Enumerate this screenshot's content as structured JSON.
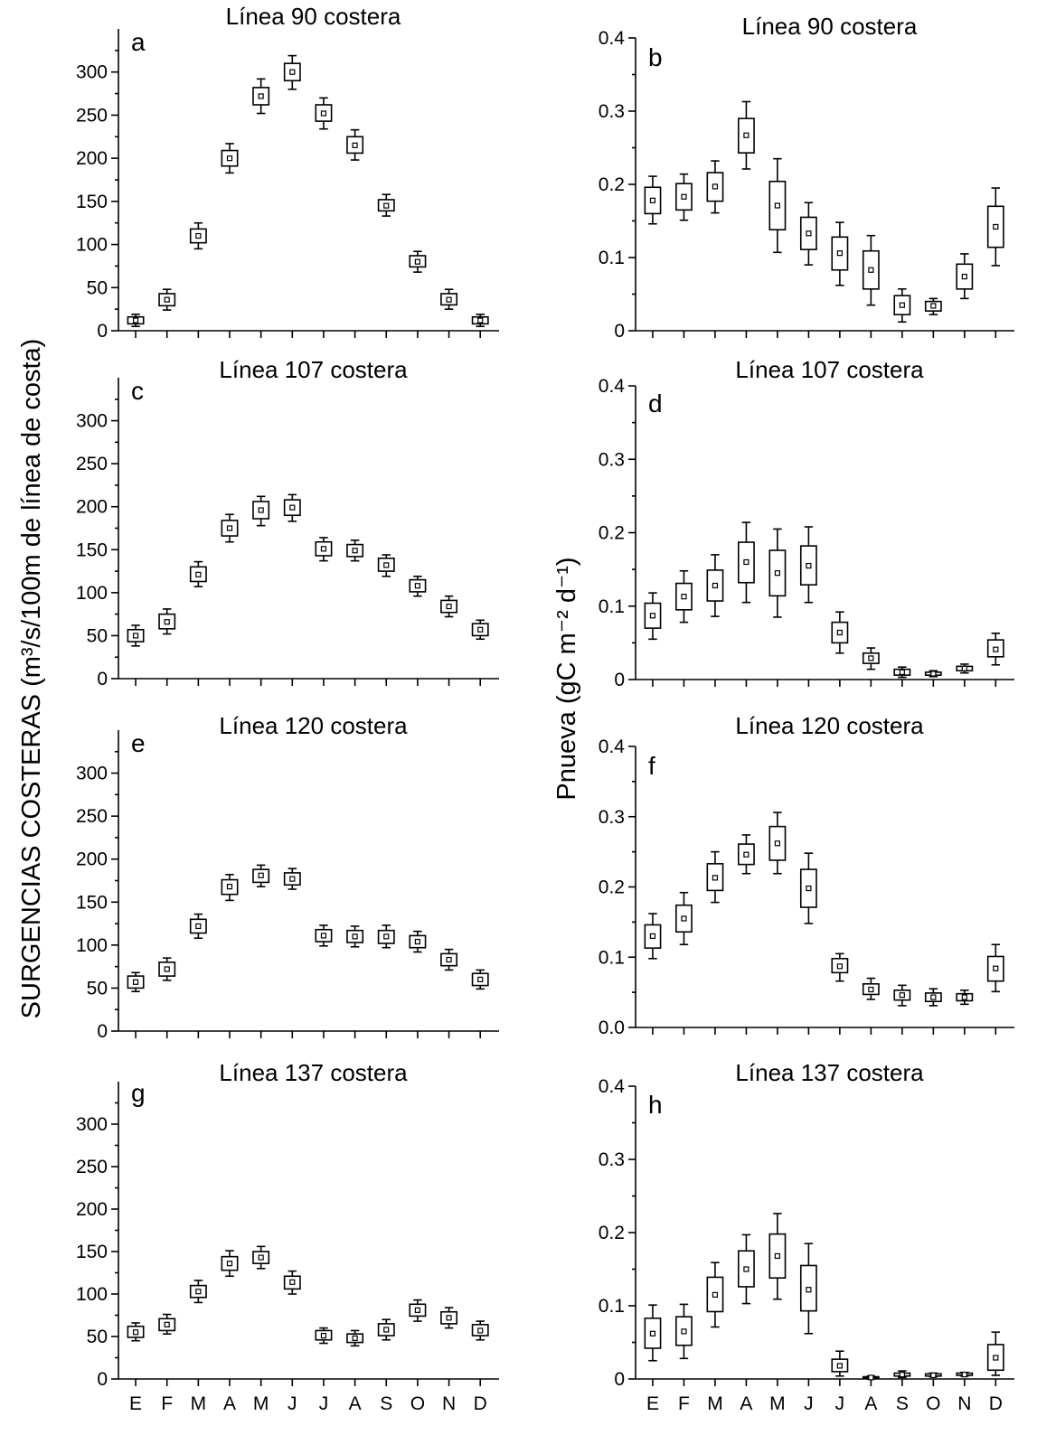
{
  "y_label_left": "SURGENCIAS COSTERAS (m³/s/100m de línea de costa)",
  "y_label_right": "Pnueva (gC m⁻² d⁻¹)",
  "months": [
    "E",
    "F",
    "M",
    "A",
    "M",
    "J",
    "J",
    "A",
    "S",
    "O",
    "N",
    "D"
  ],
  "chart_data": [
    {
      "type": "box",
      "label": "a",
      "title": "Línea 90 costera",
      "ylim": [
        0,
        350
      ],
      "yticks": [
        0,
        50,
        100,
        150,
        200,
        250,
        300
      ],
      "categories": [
        "E",
        "F",
        "M",
        "A",
        "M",
        "J",
        "J",
        "A",
        "S",
        "O",
        "N",
        "D"
      ],
      "mean": [
        12,
        36,
        110,
        200,
        272,
        300,
        252,
        215,
        145,
        80,
        36,
        12
      ],
      "q1": [
        8,
        29,
        102,
        191,
        262,
        290,
        243,
        206,
        139,
        74,
        30,
        8
      ],
      "q3": [
        16,
        43,
        118,
        209,
        282,
        310,
        262,
        225,
        152,
        87,
        43,
        16
      ],
      "whisker_low": [
        5,
        24,
        95,
        183,
        252,
        280,
        234,
        198,
        133,
        68,
        25,
        5
      ],
      "whisker_high": [
        19,
        48,
        125,
        217,
        292,
        319,
        270,
        233,
        158,
        92,
        48,
        19
      ],
      "tick_labels_x": false
    },
    {
      "type": "box",
      "label": "b",
      "title": "Línea 90 costera",
      "ylim": [
        0,
        0.4
      ],
      "yticks": [
        0.0,
        0.1,
        0.2,
        0.3,
        0.4
      ],
      "ytick_labels": [
        "0",
        "0.1",
        "0.2",
        "0.3",
        "0.4"
      ],
      "categories": [
        "E",
        "F",
        "M",
        "A",
        "M",
        "J",
        "J",
        "A",
        "S",
        "O",
        "N",
        "D"
      ],
      "mean": [
        0.178,
        0.183,
        0.197,
        0.267,
        0.171,
        0.133,
        0.106,
        0.083,
        0.035,
        0.034,
        0.074,
        0.142
      ],
      "q1": [
        0.16,
        0.165,
        0.177,
        0.243,
        0.138,
        0.111,
        0.083,
        0.057,
        0.022,
        0.027,
        0.057,
        0.114
      ],
      "q3": [
        0.196,
        0.201,
        0.216,
        0.29,
        0.204,
        0.155,
        0.128,
        0.109,
        0.048,
        0.04,
        0.091,
        0.17
      ],
      "whisker_low": [
        0.146,
        0.151,
        0.161,
        0.221,
        0.107,
        0.09,
        0.062,
        0.035,
        0.012,
        0.022,
        0.044,
        0.089
      ],
      "whisker_high": [
        0.211,
        0.214,
        0.232,
        0.313,
        0.235,
        0.175,
        0.148,
        0.13,
        0.057,
        0.044,
        0.105,
        0.195
      ],
      "tick_labels_x": false
    },
    {
      "type": "box",
      "label": "c",
      "title": "Línea 107 costera",
      "ylim": [
        0,
        350
      ],
      "yticks": [
        0,
        50,
        100,
        150,
        200,
        250,
        300
      ],
      "categories": [
        "E",
        "F",
        "M",
        "A",
        "M",
        "J",
        "J",
        "A",
        "S",
        "O",
        "N",
        "D"
      ],
      "mean": [
        50,
        66,
        121,
        175,
        196,
        199,
        151,
        149,
        132,
        108,
        84,
        57
      ],
      "q1": [
        43,
        58,
        113,
        166,
        186,
        190,
        143,
        142,
        125,
        101,
        77,
        50
      ],
      "q3": [
        57,
        75,
        130,
        184,
        206,
        208,
        159,
        156,
        140,
        115,
        91,
        64
      ],
      "whisker_low": [
        38,
        52,
        107,
        159,
        178,
        183,
        137,
        137,
        119,
        96,
        72,
        46
      ],
      "whisker_high": [
        62,
        81,
        136,
        191,
        212,
        214,
        164,
        161,
        144,
        119,
        96,
        68
      ],
      "tick_labels_x": false
    },
    {
      "type": "box",
      "label": "d",
      "title": "Línea 107 costera",
      "ylim": [
        0,
        0.4
      ],
      "yticks": [
        0.0,
        0.1,
        0.2,
        0.3,
        0.4
      ],
      "ytick_labels": [
        "0",
        "0.1",
        "0.2",
        "0.3",
        "0.4"
      ],
      "categories": [
        "E",
        "F",
        "M",
        "A",
        "M",
        "J",
        "J",
        "A",
        "S",
        "O",
        "N",
        "D"
      ],
      "mean": [
        0.087,
        0.113,
        0.128,
        0.16,
        0.145,
        0.155,
        0.064,
        0.029,
        0.01,
        0.008,
        0.015,
        0.041
      ],
      "q1": [
        0.07,
        0.095,
        0.107,
        0.132,
        0.114,
        0.129,
        0.05,
        0.022,
        0.006,
        0.006,
        0.012,
        0.031
      ],
      "q3": [
        0.104,
        0.131,
        0.149,
        0.187,
        0.176,
        0.182,
        0.078,
        0.036,
        0.014,
        0.01,
        0.018,
        0.054
      ],
      "whisker_low": [
        0.055,
        0.078,
        0.086,
        0.105,
        0.085,
        0.105,
        0.036,
        0.014,
        0.003,
        0.004,
        0.009,
        0.02
      ],
      "whisker_high": [
        0.118,
        0.148,
        0.17,
        0.214,
        0.205,
        0.208,
        0.092,
        0.043,
        0.017,
        0.012,
        0.021,
        0.063
      ],
      "tick_labels_x": false
    },
    {
      "type": "box",
      "label": "e",
      "title": "Línea 120 costera",
      "ylim": [
        0,
        350
      ],
      "yticks": [
        0,
        50,
        100,
        150,
        200,
        250,
        300
      ],
      "categories": [
        "E",
        "F",
        "M",
        "A",
        "M",
        "J",
        "J",
        "A",
        "S",
        "O",
        "N",
        "D"
      ],
      "mean": [
        57,
        72,
        122,
        168,
        181,
        177,
        111,
        110,
        110,
        104,
        83,
        60
      ],
      "q1": [
        50,
        64,
        114,
        159,
        173,
        170,
        104,
        103,
        102,
        97,
        76,
        53
      ],
      "q3": [
        64,
        80,
        130,
        176,
        188,
        184,
        118,
        117,
        117,
        111,
        90,
        67
      ],
      "whisker_low": [
        46,
        59,
        108,
        152,
        168,
        165,
        99,
        98,
        97,
        92,
        71,
        49
      ],
      "whisker_high": [
        68,
        85,
        136,
        182,
        193,
        189,
        123,
        122,
        123,
        116,
        95,
        71
      ],
      "tick_labels_x": false
    },
    {
      "type": "box",
      "label": "f",
      "title": "Línea 120 costera",
      "ylim": [
        0,
        0.4
      ],
      "yticks": [
        0.0,
        0.1,
        0.2,
        0.3,
        0.4
      ],
      "ytick_labels": [
        "0.0",
        "0.1",
        "0.2",
        "0.3",
        "0.4"
      ],
      "categories": [
        "E",
        "F",
        "M",
        "A",
        "M",
        "J",
        "J",
        "A",
        "S",
        "O",
        "N",
        "D"
      ],
      "mean": [
        0.13,
        0.155,
        0.213,
        0.246,
        0.262,
        0.198,
        0.087,
        0.054,
        0.046,
        0.043,
        0.043,
        0.084
      ],
      "q1": [
        0.113,
        0.136,
        0.195,
        0.232,
        0.238,
        0.171,
        0.078,
        0.047,
        0.039,
        0.037,
        0.038,
        0.066
      ],
      "q3": [
        0.146,
        0.174,
        0.233,
        0.261,
        0.286,
        0.225,
        0.098,
        0.062,
        0.053,
        0.049,
        0.048,
        0.101
      ],
      "whisker_low": [
        0.098,
        0.118,
        0.178,
        0.219,
        0.219,
        0.148,
        0.066,
        0.04,
        0.031,
        0.031,
        0.033,
        0.051
      ],
      "whisker_high": [
        0.162,
        0.192,
        0.25,
        0.274,
        0.306,
        0.248,
        0.105,
        0.07,
        0.06,
        0.055,
        0.053,
        0.118
      ],
      "tick_labels_x": false
    },
    {
      "type": "box",
      "label": "g",
      "title": "Línea 137 costera",
      "ylim": [
        0,
        350
      ],
      "yticks": [
        0,
        50,
        100,
        150,
        200,
        250,
        300
      ],
      "categories": [
        "E",
        "F",
        "M",
        "A",
        "M",
        "J",
        "J",
        "A",
        "S",
        "O",
        "N",
        "D"
      ],
      "mean": [
        55,
        64,
        103,
        136,
        143,
        114,
        51,
        48,
        58,
        81,
        72,
        57
      ],
      "q1": [
        49,
        57,
        96,
        128,
        136,
        106,
        46,
        43,
        51,
        74,
        65,
        51
      ],
      "q3": [
        62,
        71,
        110,
        144,
        150,
        121,
        57,
        53,
        65,
        88,
        79,
        64
      ],
      "whisker_low": [
        45,
        53,
        90,
        121,
        130,
        100,
        42,
        39,
        46,
        68,
        60,
        46
      ],
      "whisker_high": [
        66,
        76,
        116,
        151,
        156,
        127,
        60,
        57,
        70,
        93,
        84,
        68
      ],
      "tick_labels_x": true
    },
    {
      "type": "box",
      "label": "h",
      "title": "Línea 137 costera",
      "ylim": [
        0,
        0.4
      ],
      "yticks": [
        0.0,
        0.1,
        0.2,
        0.3,
        0.4
      ],
      "ytick_labels": [
        "0",
        "0.1",
        "0.2",
        "0.3",
        "0.4"
      ],
      "categories": [
        "E",
        "F",
        "M",
        "A",
        "M",
        "J",
        "J",
        "A",
        "S",
        "O",
        "N",
        "D"
      ],
      "mean": [
        0.062,
        0.065,
        0.115,
        0.15,
        0.168,
        0.122,
        0.018,
        0.002,
        0.006,
        0.005,
        0.006,
        0.029
      ],
      "q1": [
        0.042,
        0.046,
        0.092,
        0.126,
        0.138,
        0.093,
        0.01,
        0.001,
        0.004,
        0.004,
        0.005,
        0.012
      ],
      "q3": [
        0.083,
        0.085,
        0.139,
        0.175,
        0.198,
        0.155,
        0.027,
        0.003,
        0.008,
        0.007,
        0.008,
        0.047
      ],
      "whisker_low": [
        0.025,
        0.028,
        0.071,
        0.103,
        0.109,
        0.062,
        0.004,
        0.0,
        0.002,
        0.003,
        0.004,
        0.005
      ],
      "whisker_high": [
        0.101,
        0.102,
        0.159,
        0.197,
        0.226,
        0.185,
        0.038,
        0.004,
        0.011,
        0.008,
        0.009,
        0.064
      ],
      "tick_labels_x": true
    }
  ]
}
